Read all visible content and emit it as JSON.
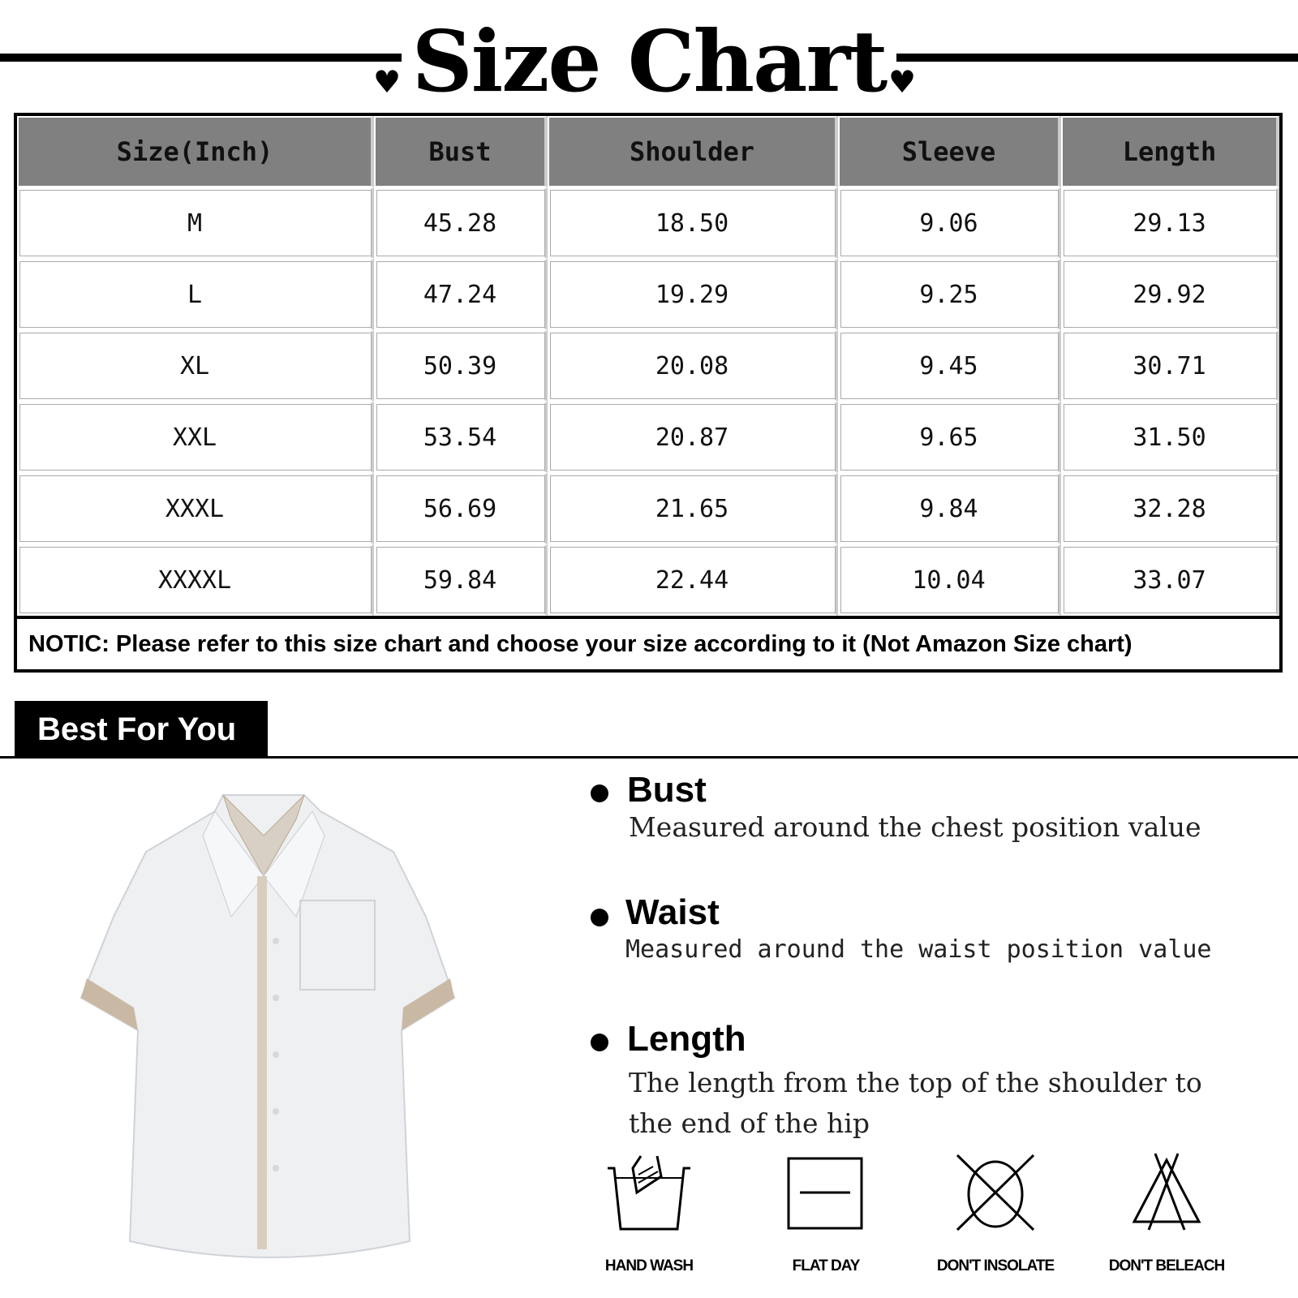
{
  "title": "Size Chart",
  "table": {
    "headers": [
      "Size(Inch)",
      "Bust",
      "Shoulder",
      "Sleeve",
      "Length"
    ],
    "rows": [
      [
        "M",
        "45.28",
        "18.50",
        "9.06",
        "29.13"
      ],
      [
        "L",
        "47.24",
        "19.29",
        "9.25",
        "29.92"
      ],
      [
        "XL",
        "50.39",
        "20.08",
        "9.45",
        "30.71"
      ],
      [
        "XXL",
        "53.54",
        "20.87",
        "9.65",
        "31.50"
      ],
      [
        "XXXL",
        "56.69",
        "21.65",
        "9.84",
        "32.28"
      ],
      [
        "XXXXL",
        "59.84",
        "22.44",
        "10.04",
        "33.07"
      ]
    ],
    "notice": "NOTIC: Please refer to this size chart and choose your size according to it (Not Amazon Size chart)"
  },
  "best_for_you": "Best For You",
  "features": [
    {
      "title": "Bust",
      "desc": [
        "Measured around the chest position value"
      ]
    },
    {
      "title": "Waist",
      "desc": [
        "Measured around the waist position value"
      ]
    },
    {
      "title": "Length",
      "desc": [
        "The length from the top of the shoulder to",
        "the end of the hip"
      ]
    }
  ],
  "care": [
    {
      "icon": "hand-wash-icon",
      "label": "HAND WASH"
    },
    {
      "icon": "flat-dry-icon",
      "label": "FLAT DAY"
    },
    {
      "icon": "no-sun-icon",
      "label": "DON'T INSOLATE"
    },
    {
      "icon": "no-bleach-icon",
      "label": "DON'T BELEACH"
    }
  ]
}
